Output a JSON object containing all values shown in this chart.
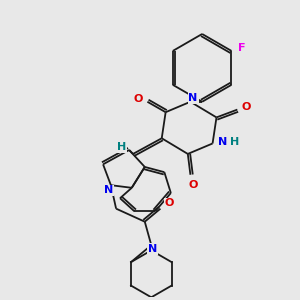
{
  "background_color": "#e8e8e8",
  "bond_color": "#1a1a1a",
  "atom_colors": {
    "N": "#0000ee",
    "O": "#dd0000",
    "F": "#ee00ee",
    "H_label": "#008080",
    "C": "#1a1a1a"
  },
  "fig_width": 3.0,
  "fig_height": 3.0,
  "dpi": 100
}
